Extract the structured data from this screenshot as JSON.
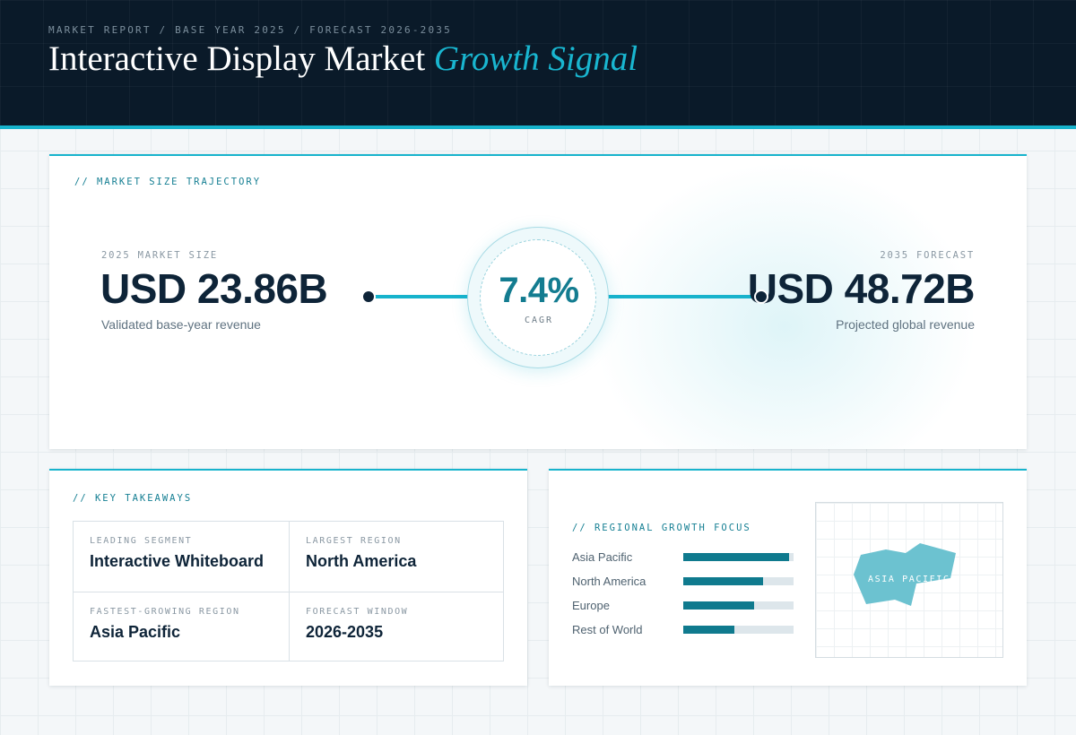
{
  "header": {
    "eyebrow": "MARKET REPORT / BASE YEAR 2025 / FORECAST 2026-2035",
    "title_main": "Interactive Display Market",
    "title_accent": "Growth Signal"
  },
  "trajectory": {
    "label": "// MARKET SIZE TRAJECTORY",
    "base": {
      "label": "2025 MARKET SIZE",
      "value": "USD 23.86B",
      "caption": "Validated base-year revenue"
    },
    "forecast": {
      "label": "2035 FORECAST",
      "value": "USD 48.72B",
      "caption": "Projected global revenue"
    },
    "cagr": {
      "value": "7.4%",
      "label": "CAGR"
    }
  },
  "takeaways": {
    "label": "// KEY TAKEAWAYS",
    "items": [
      {
        "label": "LEADING SEGMENT",
        "value": "Interactive Whiteboard"
      },
      {
        "label": "LARGEST REGION",
        "value": "North America"
      },
      {
        "label": "FASTEST-GROWING REGION",
        "value": "Asia Pacific"
      },
      {
        "label": "FORECAST WINDOW",
        "value": "2026-2035"
      }
    ]
  },
  "regional": {
    "label": "// REGIONAL GROWTH FOCUS",
    "bars": [
      {
        "name": "Asia Pacific",
        "level": 0.96
      },
      {
        "name": "North America",
        "level": 0.72
      },
      {
        "name": "Europe",
        "level": 0.64
      },
      {
        "name": "Rest of World",
        "level": 0.46
      }
    ],
    "map_label": "ASIA PACIFIC",
    "colors": {
      "bar": "#0f7a8e",
      "track": "#dde6eb",
      "highlight": "#6cc2d0"
    }
  }
}
